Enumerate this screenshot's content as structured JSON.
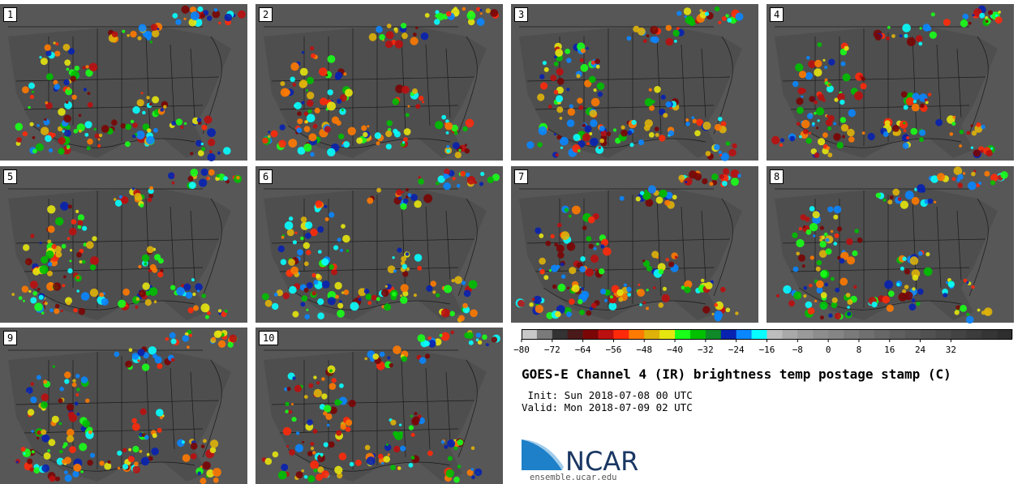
{
  "panels": [
    {
      "label": "1"
    },
    {
      "label": "2"
    },
    {
      "label": "3"
    },
    {
      "label": "4"
    },
    {
      "label": "5"
    },
    {
      "label": "6"
    },
    {
      "label": "7"
    },
    {
      "label": "8"
    },
    {
      "label": "9"
    },
    {
      "label": "10"
    }
  ],
  "colorbar": {
    "colors": [
      "#c8c8c8",
      "#7a7a7a",
      "#333333",
      "#4a1a1a",
      "#7a0606",
      "#bb1010",
      "#ff2a0a",
      "#ff7a00",
      "#dfb20a",
      "#e6e610",
      "#19ff19",
      "#00c000",
      "#108a28",
      "#0822b0",
      "#0a86ff",
      "#08ffff",
      "#bdbdbd",
      "#a9a9a9",
      "#9a9a9a",
      "#8d8d8d",
      "#858585",
      "#7a7a7a",
      "#707070",
      "#676767",
      "#5f5f5f",
      "#585858",
      "#515151",
      "#4a4a4a",
      "#434343",
      "#3c3c3c",
      "#353535",
      "#2e2e2e"
    ],
    "tick_labels": [
      "−80",
      "−72",
      "−64",
      "−56",
      "−48",
      "−40",
      "−32",
      "−24",
      "−16",
      "−8",
      "0",
      "8",
      "16",
      "24",
      "32"
    ]
  },
  "title": "GOES-E Channel 4 (IR) brightness temp postage stamp (C)",
  "init_text": " Init: Sun 2018-07-08 00 UTC",
  "valid_text": "Valid: Mon 2018-07-09 02 UTC",
  "logo_text": "NCAR",
  "url": "ensemble.ucar.edu"
}
